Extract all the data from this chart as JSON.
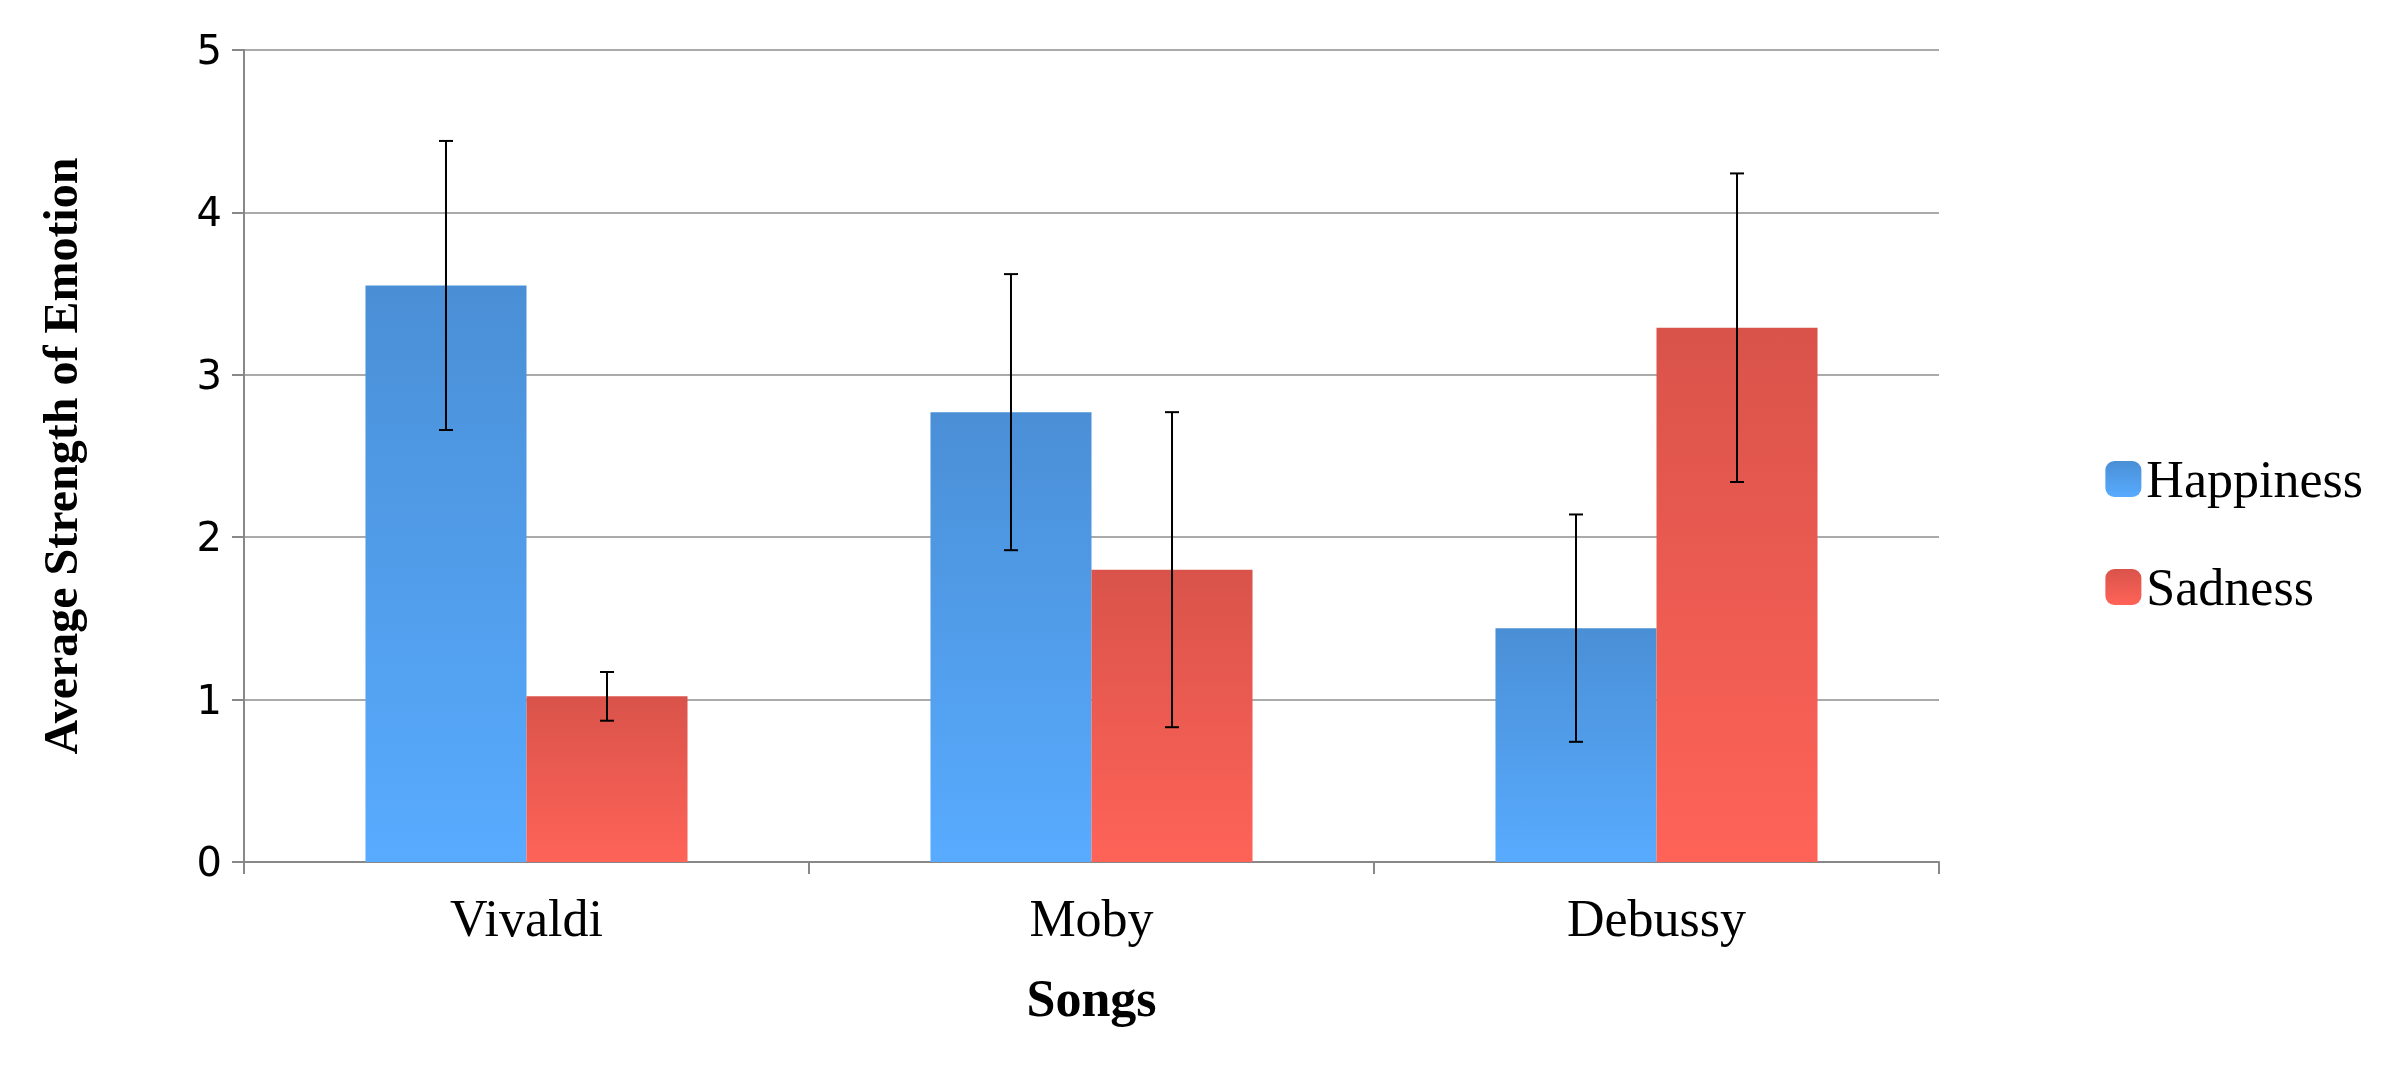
{
  "chart_data": {
    "type": "bar",
    "xlabel": "Songs",
    "ylabel": "Average Strength of Emotion",
    "categories": [
      "Vivaldi",
      "Moby",
      "Debussy"
    ],
    "series": [
      {
        "name": "Happiness",
        "color": "#4a8fd6",
        "values": [
          3.55,
          2.77,
          1.44
        ],
        "errors": [
          0.89,
          0.85,
          0.7
        ]
      },
      {
        "name": "Sadness",
        "color": "#d9534a",
        "values": [
          1.02,
          1.8,
          3.29
        ],
        "errors": [
          0.15,
          0.97,
          0.95
        ]
      }
    ],
    "ylim": [
      0,
      5
    ],
    "yticks": [
      0,
      1,
      2,
      3,
      4,
      5
    ],
    "grid": "y",
    "legend": "right"
  }
}
